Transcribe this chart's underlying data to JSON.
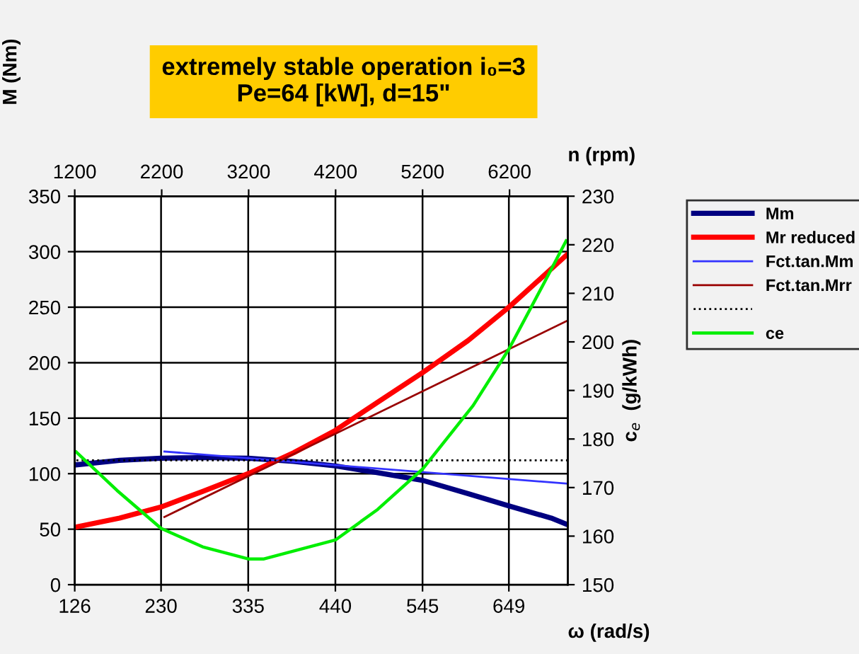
{
  "chart_data": {
    "type": "line",
    "title": "extremely stable operation i₀=3\nPe=64 [kW], d=15\"",
    "xlabel": "ω (rad/s)",
    "x2label": "n (rpm)",
    "ylabel": "M (Nm)",
    "y2label": "c$_{e}$  (g/kWh)",
    "xlim": [
      126,
      720
    ],
    "xticks": [
      126,
      230,
      335,
      440,
      545,
      649
    ],
    "x2lim": [
      1200,
      6870
    ],
    "x2ticks": [
      1200,
      2200,
      3200,
      4200,
      5200,
      6200
    ],
    "ylim": [
      0,
      350
    ],
    "yticks": [
      0,
      50,
      100,
      150,
      200,
      250,
      300,
      350
    ],
    "y2lim": [
      150,
      230
    ],
    "y2ticks": [
      150,
      160,
      170,
      180,
      190,
      200,
      210,
      220,
      230
    ],
    "grid": true,
    "legend": "right",
    "series": [
      {
        "name": "Mm",
        "color": "#000080",
        "line_style": "solid",
        "x": [
          128,
          180,
          230,
          280,
          335,
          390,
          440,
          490,
          545,
          600,
          649,
          700,
          720
        ],
        "values": [
          108,
          112,
          114,
          114.5,
          114,
          111,
          107,
          101,
          94,
          82,
          71,
          60,
          54
        ]
      },
      {
        "name": "Mr reduced",
        "color": "#ff0000",
        "line_style": "solid",
        "x": [
          128,
          180,
          230,
          280,
          335,
          390,
          440,
          490,
          545,
          600,
          649,
          720
        ],
        "values": [
          52,
          60,
          70,
          84,
          100,
          119,
          139,
          164,
          191,
          220,
          250,
          298
        ]
      },
      {
        "name": "Fct.tan.Mm",
        "color": "#3333ff",
        "line_style": "solid",
        "x": [
          234,
          720
        ],
        "values": [
          120,
          91
        ]
      },
      {
        "name": "Fct.tan.Mrr",
        "color": "#990000",
        "line_style": "solid",
        "x": [
          234,
          720
        ],
        "values": [
          61,
          238
        ]
      },
      {
        "color": "#000000",
        "line_style": "dotted",
        "x": [
          128,
          720
        ],
        "values": [
          112,
          112
        ]
      },
      {
        "name": "ce",
        "color": "#00ee00",
        "line_style": "solid",
        "axis": "y2",
        "x": [
          128,
          177,
          230,
          280,
          335,
          354,
          440,
          491,
          545,
          606,
          649,
          691,
          718
        ],
        "values": [
          177.3,
          169.4,
          161.6,
          157.8,
          155.3,
          155.3,
          159.2,
          165.5,
          173.8,
          186.9,
          198.5,
          212,
          220.8
        ]
      }
    ]
  }
}
